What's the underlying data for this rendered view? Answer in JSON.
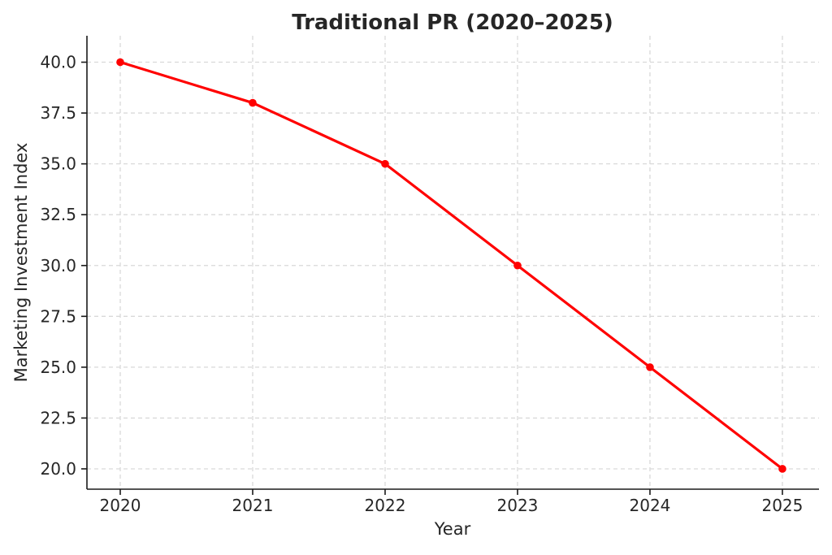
{
  "chart_data": {
    "type": "line",
    "title": "Traditional PR (2020–2025)",
    "xlabel": "Year",
    "ylabel": "Marketing Investment Index",
    "categories": [
      "2020",
      "2021",
      "2022",
      "2023",
      "2024",
      "2025"
    ],
    "series": [
      {
        "name": "Traditional PR",
        "values": [
          40,
          38,
          35,
          30,
          25,
          20
        ],
        "color": "#ff0000",
        "marker": "circle"
      }
    ],
    "yticks": [
      20.0,
      22.5,
      25.0,
      27.5,
      30.0,
      32.5,
      35.0,
      37.5,
      40.0
    ],
    "ytick_labels": [
      "20.0",
      "22.5",
      "25.0",
      "27.5",
      "30.0",
      "32.5",
      "35.0",
      "37.5",
      "40.0"
    ],
    "ylim": [
      19.0,
      41.3
    ],
    "grid": true,
    "grid_style": "dashed",
    "legend_position": "none",
    "colors": {
      "line": "#ff0000",
      "text": "#262626",
      "spine": "#1a1a1a",
      "grid": "#d9d9d9",
      "background": "#ffffff"
    }
  }
}
